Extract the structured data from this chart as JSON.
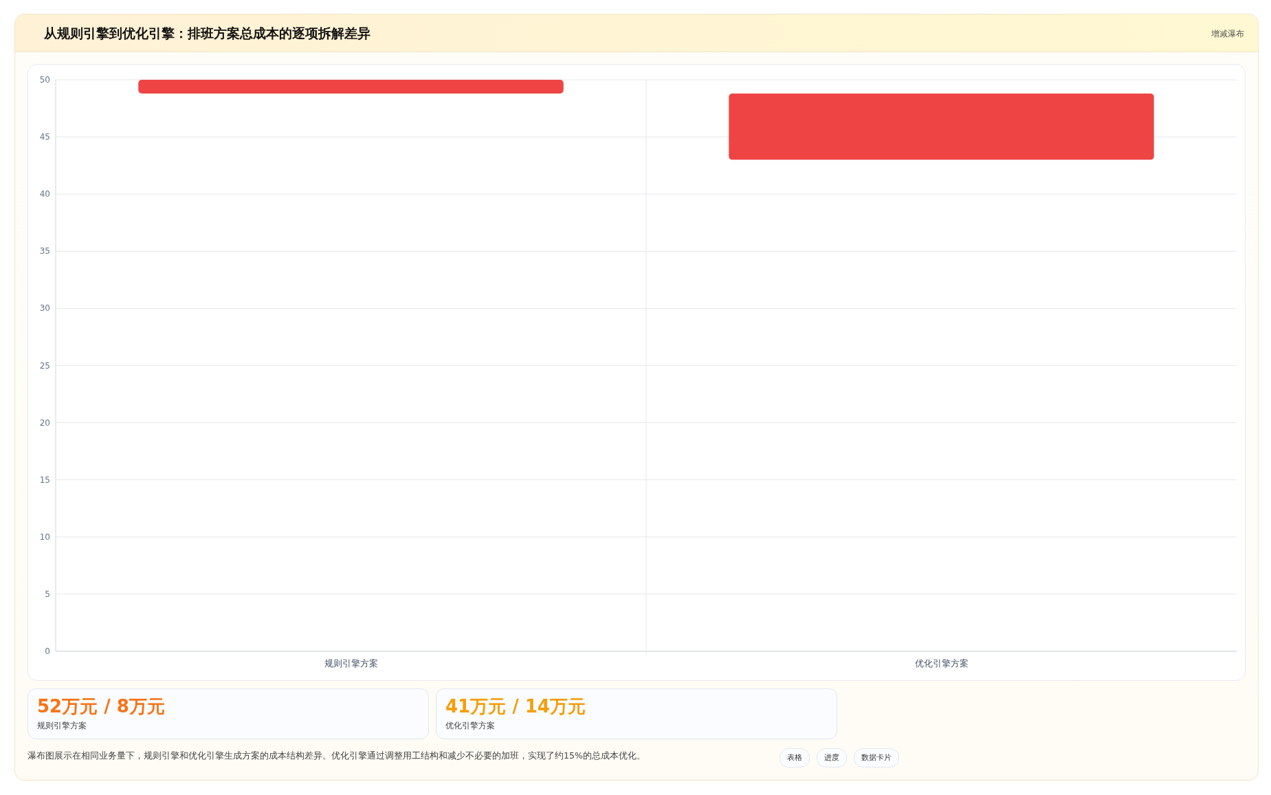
{
  "chart_data": [
    {
      "type": "bar",
      "title": "从规则引擎到优化引擎：排班方案总成本的逐项拆解差异",
      "subtitle": "增减瀑布",
      "categories": [
        "规则引擎方案",
        "优化引擎方案"
      ],
      "values": [
        1.2,
        5.8
      ],
      "base": [
        48.8,
        43
      ],
      "color": "#ef4444",
      "ylim": [
        0,
        50
      ],
      "yticks": [
        0,
        5,
        10,
        15,
        20,
        25,
        30,
        35,
        40,
        45,
        50
      ],
      "grid": true,
      "annotations": [
        "瀑布图展示在相同业务量下，规则引擎和优化引擎生成方案的成本结构差异。优化引擎通过调整用工结构和减少不必要的加班，实现了约15%的总成本优化。",
        "表格",
        "进度",
        "数据卡片"
      ]
    },
    {
      "type": "other",
      "annotations": [
        "52万元 / 8万元",
        "规则引擎方案",
        "41万元 / 14万元",
        "优化引擎方案"
      ],
      "colors": [
        "#f97316",
        "#f59e0b"
      ]
    }
  ]
}
